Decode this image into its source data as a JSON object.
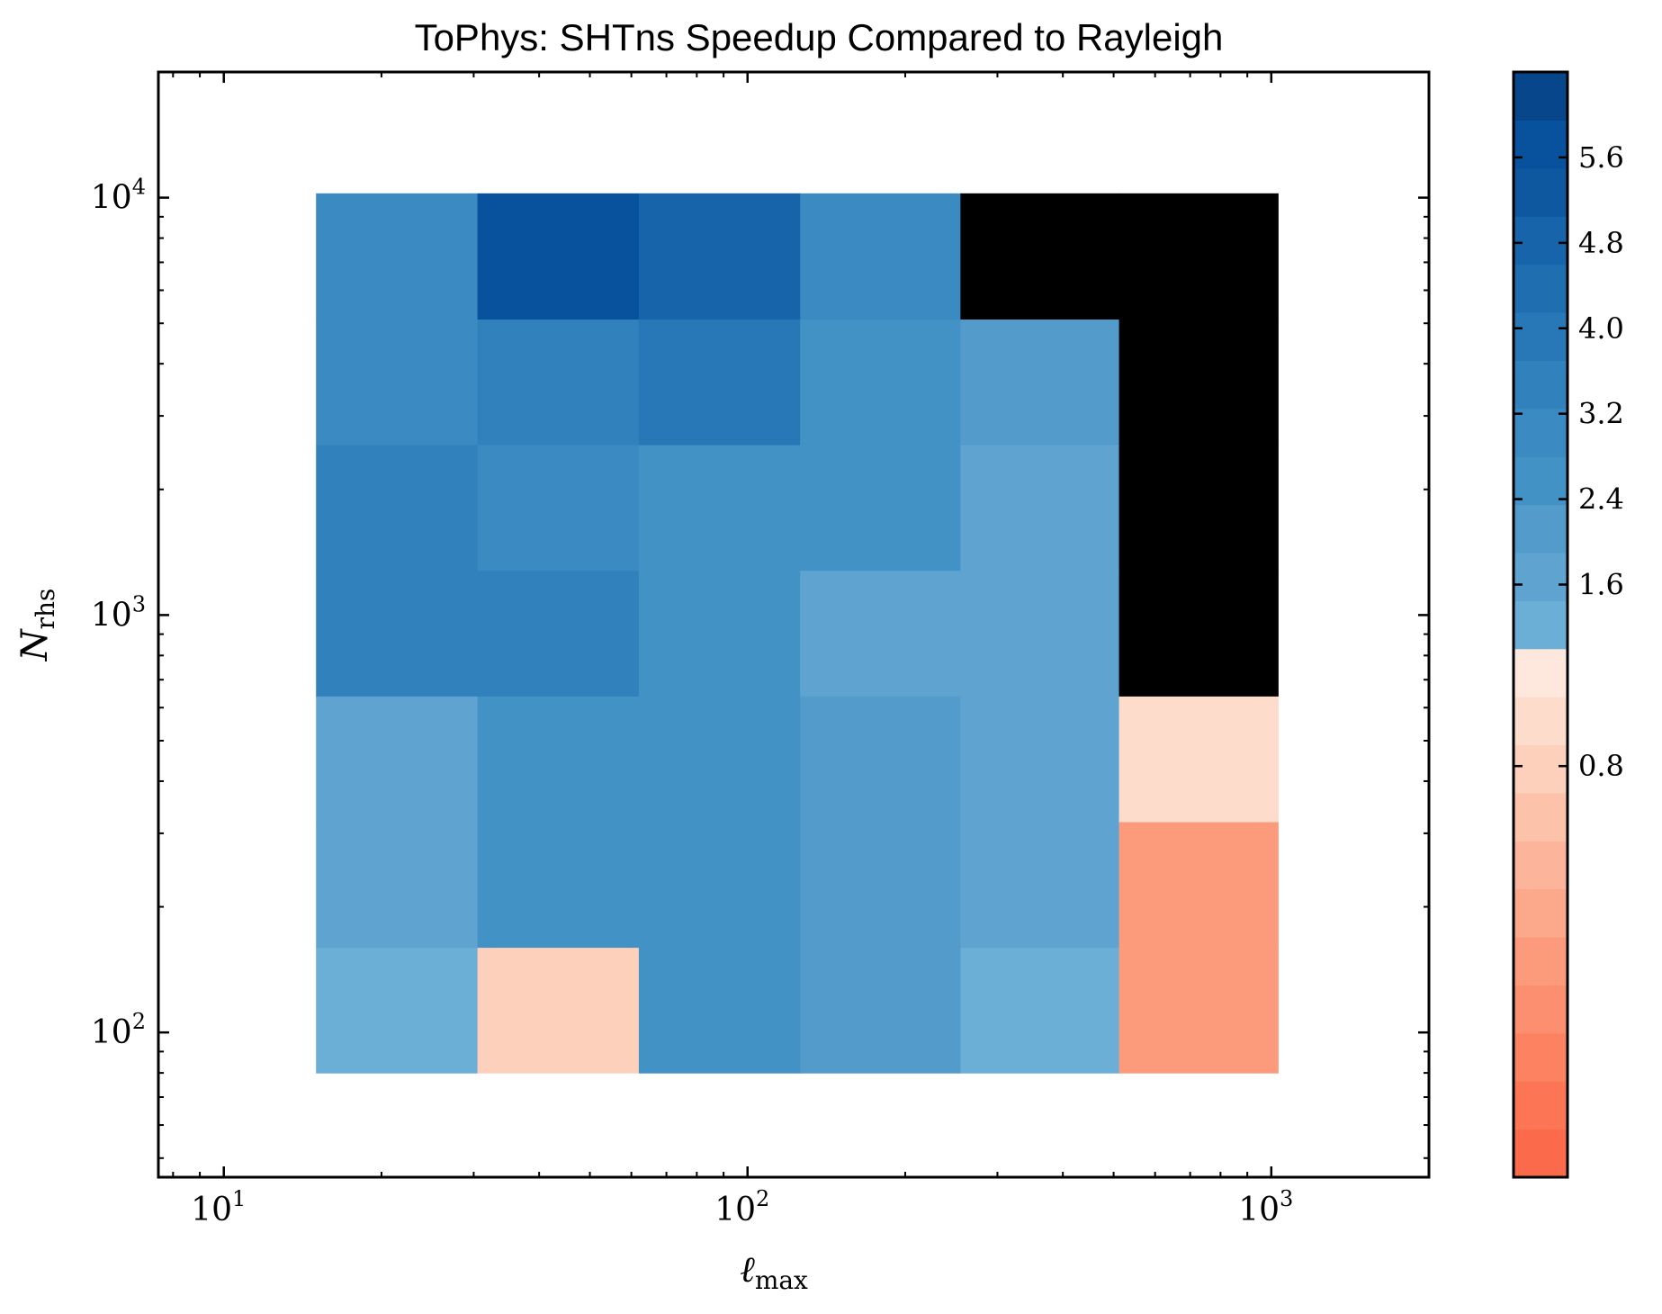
{
  "chart_data": {
    "type": "heatmap",
    "title": "ToPhys: SHTns Speedup Compared to Rayleigh",
    "xlabel": {
      "main": "ℓ",
      "sub": "max"
    },
    "ylabel": {
      "main": "N",
      "sub": "rhs"
    },
    "x_scale": "log",
    "y_scale": "log",
    "xlim": [
      7.5,
      2000
    ],
    "ylim": [
      45,
      20000
    ],
    "x_ticks": [
      {
        "base": "10",
        "exp": "1",
        "value": 10
      },
      {
        "base": "10",
        "exp": "2",
        "value": 100
      },
      {
        "base": "10",
        "exp": "3",
        "value": 1000
      }
    ],
    "y_ticks": [
      {
        "base": "10",
        "exp": "2",
        "value": 100
      },
      {
        "base": "10",
        "exp": "3",
        "value": 1000
      },
      {
        "base": "10",
        "exp": "4",
        "value": 10000
      }
    ],
    "x_edges": [
      15,
      30.5,
      62,
      126,
      255,
      512,
      1030
    ],
    "y_edges": [
      80,
      160,
      320,
      640,
      1280,
      2560,
      5120,
      10240
    ],
    "values": [
      [
        1.0,
        0.78,
        2.8,
        2.05,
        1.05,
        0.45
      ],
      [
        1.6,
        2.8,
        2.8,
        2.05,
        1.6,
        0.45
      ],
      [
        1.6,
        2.8,
        2.55,
        2.2,
        1.6,
        0.88
      ],
      [
        3.4,
        3.4,
        2.8,
        1.6,
        1.6,
        null
      ],
      [
        3.4,
        3.1,
        2.8,
        2.4,
        1.6,
        null
      ],
      [
        3.05,
        3.4,
        4.0,
        2.8,
        2.05,
        null
      ],
      [
        3.05,
        5.9,
        4.7,
        3.05,
        null,
        null
      ]
    ],
    "missing_color": "#000000",
    "colorbar": {
      "ticks": [
        "1.6",
        "2.4",
        "3.2",
        "4.0",
        "4.8",
        "5.6",
        "0.8"
      ],
      "tick_values": [
        1.6,
        2.4,
        3.2,
        4.0,
        4.8,
        5.6,
        0.8
      ],
      "colors_low_to_high": [
        "#fb6a4a",
        "#fc7656",
        "#fc8262",
        "#fc8f6f",
        "#fc9b7c",
        "#fca88a",
        "#fcb59a",
        "#fdc2aa",
        "#fdd0bb",
        "#fedccc",
        "#fee7dd",
        "#6baed6",
        "#5fa4d0",
        "#529bcb",
        "#4292c6",
        "#3c8ac2",
        "#3181bd",
        "#2878b8",
        "#1f6eb0",
        "#1764ab",
        "#0e58a0",
        "#08519c",
        "#08468b"
      ],
      "n_low": 11,
      "low_range": [
        0.1,
        1.0
      ],
      "high_range": [
        1.0,
        6.4
      ]
    }
  }
}
